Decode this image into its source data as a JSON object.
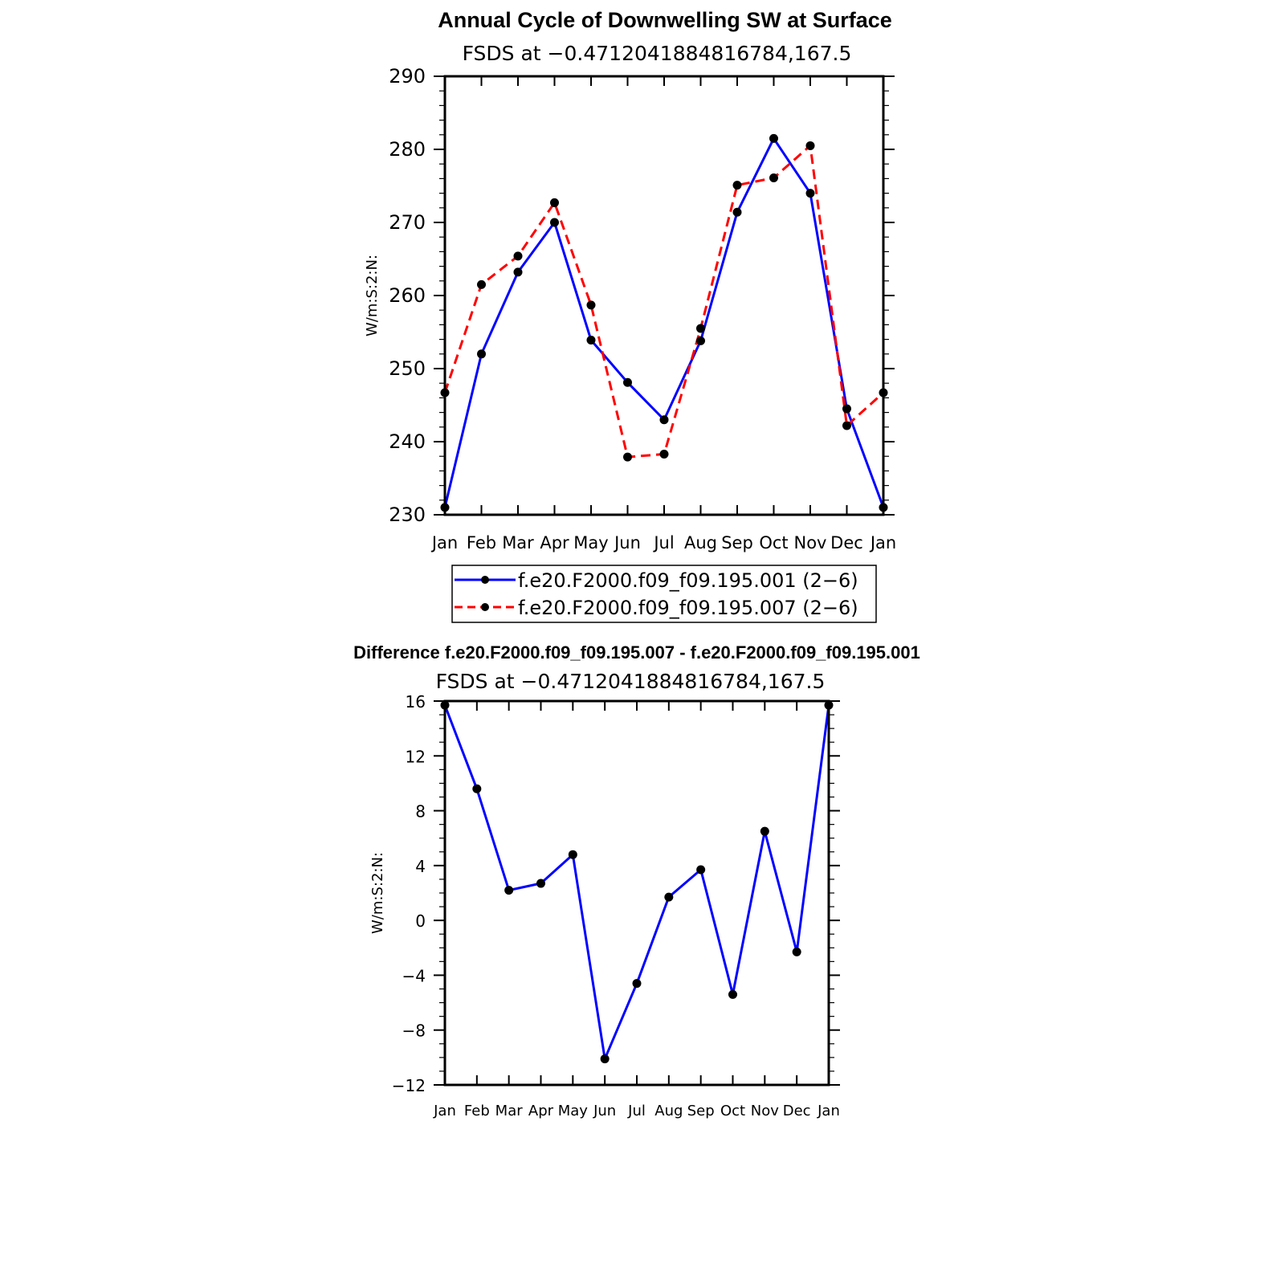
{
  "chart_data": [
    {
      "type": "line",
      "title": "Annual Cycle of Downwelling SW at Surface",
      "subtitle": "FSDS at −0.4712041884816784,167.5",
      "ylabel": "W/m:S:2:N:",
      "ylim": [
        230,
        290
      ],
      "yticks": [
        "230",
        "240",
        "250",
        "260",
        "270",
        "280",
        "290"
      ],
      "categories": [
        "Jan",
        "Feb",
        "Mar",
        "Apr",
        "May",
        "Jun",
        "Jul",
        "Aug",
        "Sep",
        "Oct",
        "Nov",
        "Dec",
        "Jan"
      ],
      "grid": false,
      "legend_position": "bottom",
      "series": [
        {
          "name": "f.e20.F2000.f09_f09.195.001 (2−6)",
          "color": "#0000ff",
          "dash": "solid",
          "values": [
            231.0,
            252.0,
            263.2,
            270.0,
            253.9,
            248.1,
            243.0,
            253.8,
            271.4,
            281.5,
            274.0,
            244.5,
            231.0
          ]
        },
        {
          "name": "f.e20.F2000.f09_f09.195.007 (2−6)",
          "color": "#ff0000",
          "dash": "dashed",
          "values": [
            246.7,
            261.5,
            265.4,
            272.7,
            258.7,
            237.9,
            238.3,
            255.5,
            275.1,
            276.1,
            280.5,
            242.2,
            246.7
          ]
        }
      ]
    },
    {
      "type": "line",
      "title": "Difference f.e20.F2000.f09_f09.195.007 - f.e20.F2000.f09_f09.195.001",
      "subtitle": "FSDS at −0.4712041884816784,167.5",
      "ylabel": "W/m:S:2:N:",
      "ylim": [
        -12,
        16
      ],
      "yticks": [
        "−12",
        "−8",
        "−4",
        "0",
        "4",
        "8",
        "12",
        "16"
      ],
      "categories": [
        "Jan",
        "Feb",
        "Mar",
        "Apr",
        "May",
        "Jun",
        "Jul",
        "Aug",
        "Sep",
        "Oct",
        "Nov",
        "Dec",
        "Jan"
      ],
      "grid": false,
      "series": [
        {
          "color": "#0000ff",
          "dash": "solid",
          "values": [
            15.7,
            9.6,
            2.2,
            2.7,
            4.8,
            -10.1,
            -4.6,
            1.7,
            3.7,
            -5.4,
            6.5,
            -2.3,
            15.7
          ]
        }
      ]
    }
  ]
}
